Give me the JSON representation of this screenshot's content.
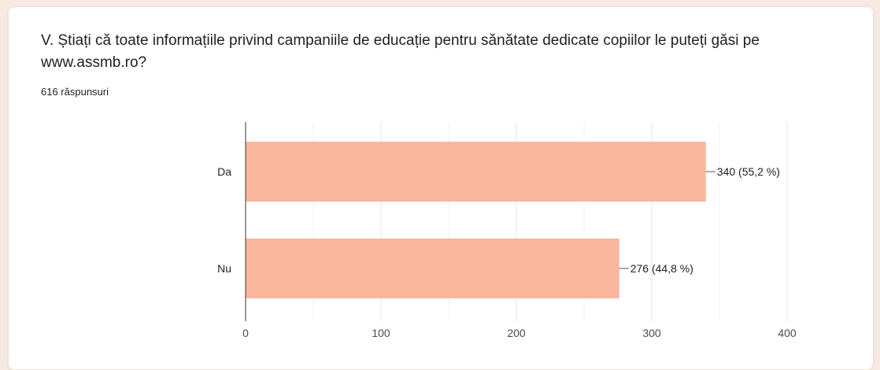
{
  "question": {
    "title": "V. Știați că toate informațiile privind campaniile de educație pentru sănătate dedicate copiilor le puteți găsi pe www.assmb.ro?",
    "responses": "616 răspunsuri"
  },
  "colors": {
    "bar": "#f9b69d",
    "grid": "#e6e6e6",
    "axis": "#333333",
    "background": "#f6e9e2"
  },
  "chart_data": {
    "type": "bar",
    "orientation": "horizontal",
    "categories": [
      "Da",
      "Nu"
    ],
    "values": [
      340,
      276
    ],
    "data_labels": [
      "340 (55,2 %)",
      "276 (44,8 %)"
    ],
    "xlim": [
      0,
      400
    ],
    "xticks": [
      0,
      100,
      200,
      300,
      400
    ],
    "grid": true,
    "legend": "none"
  }
}
